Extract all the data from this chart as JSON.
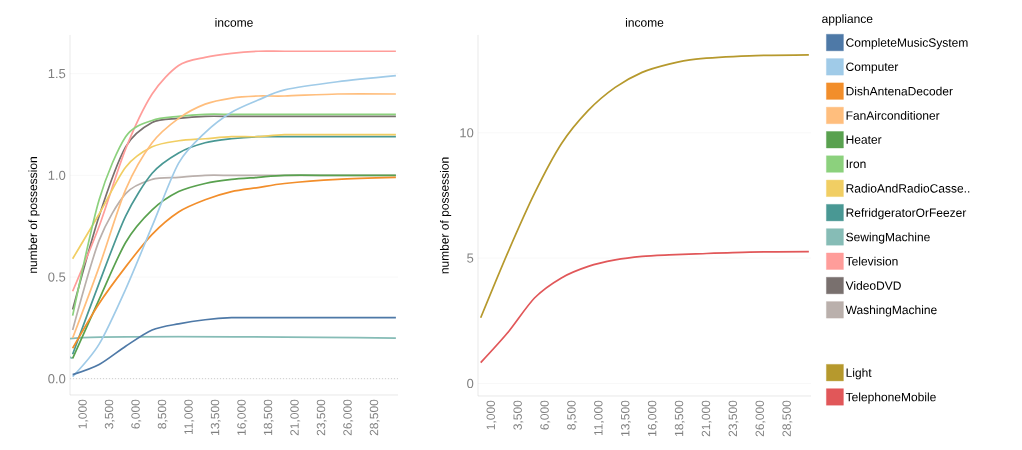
{
  "chart_data": [
    {
      "type": "line",
      "title": "income",
      "ylabel": "number of possession",
      "legend_title": "appliance",
      "legend": "right",
      "grid": "y",
      "line_style": "solid",
      "x": [
        0,
        2500,
        5000,
        7500,
        10000,
        12500,
        15000,
        17500,
        20000,
        25000,
        30500
      ],
      "xlim": [
        -250,
        30700
      ],
      "xticks": [
        {
          "value": 1000,
          "label": "1,000"
        },
        {
          "value": 3500,
          "label": "3,500"
        },
        {
          "value": 6000,
          "label": "6,000"
        },
        {
          "value": 8500,
          "label": "8,500"
        },
        {
          "value": 11000,
          "label": "11,000"
        },
        {
          "value": 13500,
          "label": "13,500"
        },
        {
          "value": 16000,
          "label": "16,000"
        },
        {
          "value": 18500,
          "label": "18,500"
        },
        {
          "value": 21000,
          "label": "21,000"
        },
        {
          "value": 23500,
          "label": "23,500"
        },
        {
          "value": 26000,
          "label": "26,000"
        },
        {
          "value": 28500,
          "label": "28,500"
        }
      ],
      "ylim": [
        -0.08,
        1.69
      ],
      "yticks": [
        {
          "value": 0,
          "label": "0.0"
        },
        {
          "value": 0.5,
          "label": "0.5"
        },
        {
          "value": 1,
          "label": "1.0"
        },
        {
          "value": 1.5,
          "label": "1.5"
        }
      ],
      "ref_lines": [
        {
          "axis": "y",
          "value": 0,
          "color": "#c8c8c8",
          "line_style": "dotted"
        }
      ],
      "series": [
        {
          "name": "CompleteMusicSystem",
          "color": "#4e79a7",
          "values": [
            0.02,
            0.07,
            0.16,
            0.24,
            0.27,
            0.29,
            0.3,
            0.3,
            0.3,
            0.3,
            0.3
          ]
        },
        {
          "name": "Computer",
          "color": "#a0cbe8",
          "values": [
            0.01,
            0.17,
            0.44,
            0.75,
            1.06,
            1.21,
            1.31,
            1.37,
            1.42,
            1.46,
            1.49
          ]
        },
        {
          "name": "DishAntenaDecoder",
          "color": "#f28e2b",
          "values": [
            0.15,
            0.37,
            0.55,
            0.71,
            0.82,
            0.88,
            0.92,
            0.94,
            0.96,
            0.98,
            0.99
          ]
        },
        {
          "name": "FanAirconditioner",
          "color": "#ffbe7d",
          "values": [
            0.2,
            0.55,
            0.93,
            1.16,
            1.28,
            1.35,
            1.38,
            1.39,
            1.39,
            1.4,
            1.4
          ]
        },
        {
          "name": "Heater",
          "color": "#59a14f",
          "values": [
            0.1,
            0.39,
            0.67,
            0.83,
            0.92,
            0.96,
            0.98,
            0.99,
            1.0,
            1.0,
            1.0
          ]
        },
        {
          "name": "Iron",
          "color": "#8cd17d",
          "values": [
            0.31,
            0.88,
            1.19,
            1.27,
            1.29,
            1.3,
            1.3,
            1.3,
            1.3,
            1.3,
            1.3
          ]
        },
        {
          "name": "RadioAndRadioCasse..",
          "color": "#f1ce63",
          "values": [
            0.59,
            0.81,
            1.04,
            1.14,
            1.17,
            1.18,
            1.19,
            1.19,
            1.2,
            1.2,
            1.2
          ]
        },
        {
          "name": "RefridgeratorOrFeezer",
          "color": "#499894",
          "values": [
            0.12,
            0.47,
            0.8,
            1.01,
            1.11,
            1.16,
            1.18,
            1.19,
            1.19,
            1.19,
            1.19
          ]
        },
        {
          "name": "SewingMachine",
          "color": "#86bcb6",
          "x": [
            0,
            300,
            30500
          ],
          "values": [
            0.1,
            0.2,
            0.2
          ]
        },
        {
          "name": "Television",
          "color": "#ff9d9a",
          "values": [
            0.43,
            0.75,
            1.13,
            1.4,
            1.54,
            1.58,
            1.6,
            1.61,
            1.61,
            1.61,
            1.61
          ]
        },
        {
          "name": "VideoDVD",
          "color": "#79706e",
          "values": [
            0.34,
            0.8,
            1.14,
            1.26,
            1.28,
            1.29,
            1.29,
            1.29,
            1.29,
            1.29,
            1.29
          ]
        },
        {
          "name": "WashingMachine",
          "color": "#bab0ac",
          "values": [
            0.24,
            0.68,
            0.91,
            0.98,
            0.99,
            1.0,
            1.0,
            1.0,
            1.0,
            1.0,
            1.0
          ]
        }
      ]
    },
    {
      "type": "line",
      "title": "income",
      "ylabel": "number of possession",
      "legend": "right",
      "grid": "y",
      "line_style": "solid",
      "x": [
        0,
        2500,
        5000,
        7500,
        10000,
        12500,
        15000,
        17500,
        20000,
        25000,
        30500
      ],
      "xlim": [
        -250,
        30700
      ],
      "xticks": [
        {
          "value": 1000,
          "label": "1,000"
        },
        {
          "value": 3500,
          "label": "3,500"
        },
        {
          "value": 6000,
          "label": "6,000"
        },
        {
          "value": 8500,
          "label": "8,500"
        },
        {
          "value": 11000,
          "label": "11,000"
        },
        {
          "value": 13500,
          "label": "13,500"
        },
        {
          "value": 16000,
          "label": "16,000"
        },
        {
          "value": 18500,
          "label": "18,500"
        },
        {
          "value": 21000,
          "label": "21,000"
        },
        {
          "value": 23500,
          "label": "23,500"
        },
        {
          "value": 26000,
          "label": "26,000"
        },
        {
          "value": 28500,
          "label": "28,500"
        }
      ],
      "ylim": [
        -0.5,
        13.9
      ],
      "yticks": [
        0,
        5,
        10
      ],
      "series": [
        {
          "name": "Light",
          "color": "#b6992d",
          "values": [
            2.62,
            5.2,
            7.58,
            9.56,
            10.89,
            11.81,
            12.41,
            12.74,
            12.94,
            13.07,
            13.11
          ]
        },
        {
          "name": "TelephoneMobile",
          "color": "#e15759",
          "values": [
            0.83,
            2.02,
            3.41,
            4.21,
            4.67,
            4.93,
            5.07,
            5.13,
            5.17,
            5.24,
            5.26
          ]
        }
      ]
    }
  ]
}
